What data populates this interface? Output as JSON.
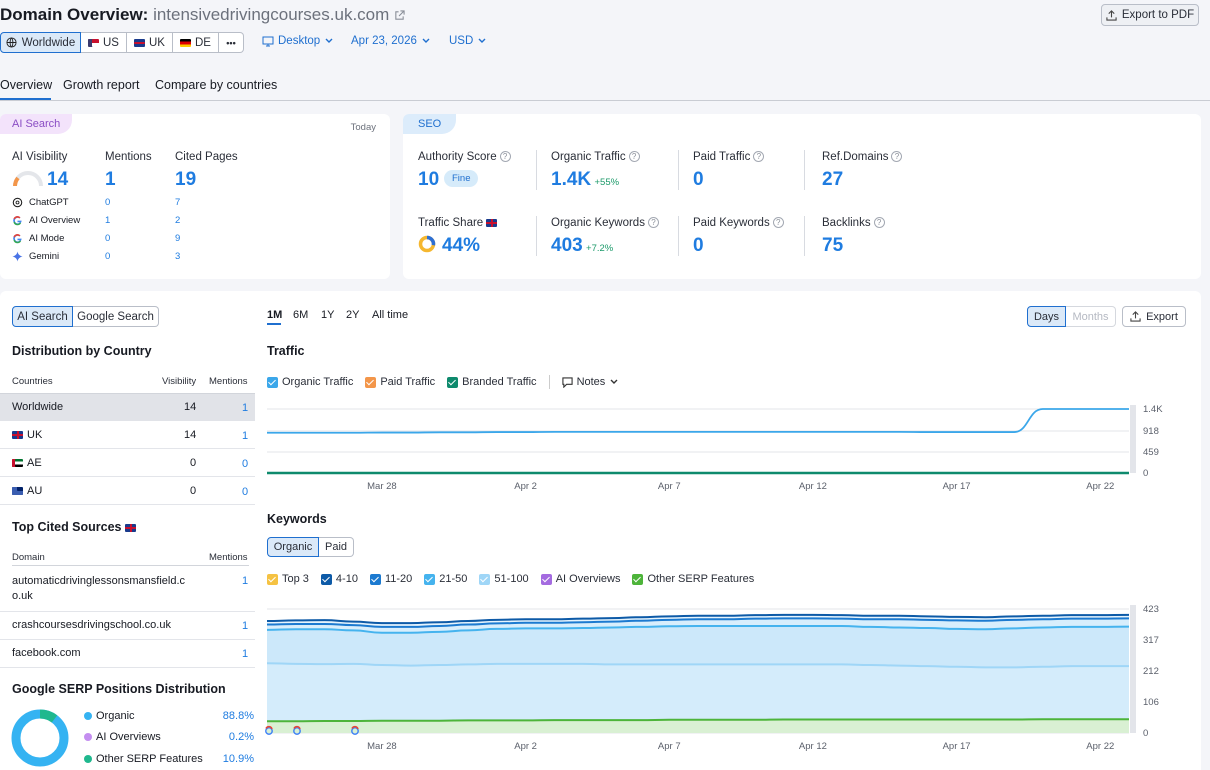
{
  "header": {
    "title_prefix": "Domain Overview:",
    "domain": "intensivedrivingcourses.uk.com",
    "export_pdf": "Export to PDF"
  },
  "regions": [
    {
      "label": "Worldwide",
      "active": true
    },
    {
      "label": "US"
    },
    {
      "label": "UK"
    },
    {
      "label": "DE"
    }
  ],
  "more_label": "•••",
  "filters": {
    "device": "Desktop",
    "date": "Apr 23, 2026",
    "currency": "USD"
  },
  "tabs": [
    "Overview",
    "Growth report",
    "Compare by countries"
  ],
  "ai_search": {
    "badge": "AI Search",
    "today": "Today",
    "headers": [
      "AI Visibility",
      "Mentions",
      "Cited Pages"
    ],
    "visibility": "14",
    "mentions": "1",
    "cited_pages": "19",
    "rows": [
      {
        "name": "ChatGPT",
        "mentions": "0",
        "cited": "7"
      },
      {
        "name": "AI Overview",
        "mentions": "1",
        "cited": "2"
      },
      {
        "name": "AI Mode",
        "mentions": "0",
        "cited": "9"
      },
      {
        "name": "Gemini",
        "mentions": "0",
        "cited": "3"
      }
    ]
  },
  "seo": {
    "badge": "SEO",
    "authority_label": "Authority Score",
    "authority_value": "10",
    "authority_tag": "Fine",
    "organic_traffic_label": "Organic Traffic",
    "organic_traffic_value": "1.4K",
    "organic_traffic_delta": "+55%",
    "paid_traffic_label": "Paid Traffic",
    "paid_traffic_value": "0",
    "ref_domains_label": "Ref.Domains",
    "ref_domains_value": "27",
    "traffic_share_label": "Traffic Share",
    "traffic_share_value": "44%",
    "organic_keywords_label": "Organic Keywords",
    "organic_keywords_value": "403",
    "organic_keywords_delta": "+7.2%",
    "paid_keywords_label": "Paid Keywords",
    "paid_keywords_value": "0",
    "backlinks_label": "Backlinks",
    "backlinks_value": "75"
  },
  "left_panel": {
    "toggle": [
      "AI Search",
      "Google Search"
    ],
    "dist_title": "Distribution by Country",
    "dist_headers": [
      "Countries",
      "Visibility",
      "Mentions"
    ],
    "dist_rows": [
      {
        "country": "Worldwide",
        "visibility": "14",
        "mentions": "1"
      },
      {
        "country": "UK",
        "visibility": "14",
        "mentions": "1"
      },
      {
        "country": "AE",
        "visibility": "0",
        "mentions": "0"
      },
      {
        "country": "AU",
        "visibility": "0",
        "mentions": "0"
      }
    ],
    "cited_title": "Top Cited Sources",
    "cited_headers": [
      "Domain",
      "Mentions"
    ],
    "cited_rows": [
      {
        "domain": "automaticdrivinglessonsmansfield.co.uk",
        "mentions": "1"
      },
      {
        "domain": "crashcoursesdrivingschool.co.uk",
        "mentions": "1"
      },
      {
        "domain": "facebook.com",
        "mentions": "1"
      }
    ],
    "serp_title": "Google SERP Positions Distribution",
    "serp_rows": [
      {
        "name": "Organic",
        "value": "88.8%",
        "color": "#35b3f2"
      },
      {
        "name": "AI Overviews",
        "value": "0.2%",
        "color": "#c48ef0"
      },
      {
        "name": "Other SERP Features",
        "value": "10.9%",
        "color": "#1fb88e"
      }
    ]
  },
  "chart_controls": {
    "ranges": [
      "1M",
      "6M",
      "1Y",
      "2Y",
      "All time"
    ],
    "days": "Days",
    "months": "Months",
    "export": "Export"
  },
  "traffic_chart": {
    "title": "Traffic",
    "legend": [
      {
        "name": "Organic Traffic",
        "color": "#3ba7ea"
      },
      {
        "name": "Paid Traffic",
        "color": "#f3964a"
      },
      {
        "name": "Branded Traffic",
        "color": "#0e8a6d"
      }
    ],
    "notes": "Notes"
  },
  "keywords_chart": {
    "title": "Keywords",
    "toggle": [
      "Organic",
      "Paid"
    ],
    "legend": [
      {
        "name": "Top 3",
        "color": "#f5c242"
      },
      {
        "name": "4-10",
        "color": "#0d5aa7"
      },
      {
        "name": "11-20",
        "color": "#1c7ad0"
      },
      {
        "name": "21-50",
        "color": "#45b3ee"
      },
      {
        "name": "51-100",
        "color": "#9fd6f7"
      },
      {
        "name": "AI Overviews",
        "color": "#a46be0"
      },
      {
        "name": "Other SERP Features",
        "color": "#4db43a"
      }
    ]
  },
  "chart_data": [
    {
      "type": "line",
      "x": [
        "Mar 24",
        "Mar 25",
        "Mar 26",
        "Mar 27",
        "Mar 28",
        "Mar 29",
        "Mar 30",
        "Mar 31",
        "Apr 1",
        "Apr 2",
        "Apr 3",
        "Apr 4",
        "Apr 5",
        "Apr 6",
        "Apr 7",
        "Apr 8",
        "Apr 9",
        "Apr 10",
        "Apr 11",
        "Apr 12",
        "Apr 13",
        "Apr 14",
        "Apr 15",
        "Apr 16",
        "Apr 17",
        "Apr 18",
        "Apr 19",
        "Apr 20",
        "Apr 21",
        "Apr 22",
        "Apr 23"
      ],
      "x_ticks": [
        "Mar 28",
        "Apr 2",
        "Apr 7",
        "Apr 12",
        "Apr 17",
        "Apr 22"
      ],
      "y_ticks": [
        "0",
        "459",
        "918",
        "1.4K"
      ],
      "ylim": [
        0,
        1400
      ],
      "series": [
        {
          "name": "Organic Traffic",
          "values": [
            880,
            880,
            880,
            880,
            885,
            885,
            890,
            890,
            895,
            895,
            900,
            900,
            900,
            900,
            900,
            900,
            900,
            900,
            900,
            900,
            900,
            900,
            900,
            895,
            895,
            895,
            895,
            1400,
            1400,
            1400,
            1400
          ]
        },
        {
          "name": "Branded Traffic",
          "values": [
            0,
            0,
            0,
            0,
            0,
            0,
            0,
            0,
            0,
            0,
            0,
            0,
            0,
            0,
            0,
            0,
            0,
            0,
            0,
            0,
            0,
            0,
            0,
            0,
            0,
            0,
            0,
            0,
            0,
            0,
            0
          ]
        }
      ]
    },
    {
      "type": "area",
      "x": [
        "Mar 24",
        "Mar 25",
        "Mar 26",
        "Mar 27",
        "Mar 28",
        "Mar 29",
        "Mar 30",
        "Mar 31",
        "Apr 1",
        "Apr 2",
        "Apr 3",
        "Apr 4",
        "Apr 5",
        "Apr 6",
        "Apr 7",
        "Apr 8",
        "Apr 9",
        "Apr 10",
        "Apr 11",
        "Apr 12",
        "Apr 13",
        "Apr 14",
        "Apr 15",
        "Apr 16",
        "Apr 17",
        "Apr 18",
        "Apr 19",
        "Apr 20",
        "Apr 21",
        "Apr 22",
        "Apr 23"
      ],
      "x_ticks": [
        "Mar 28",
        "Apr 2",
        "Apr 7",
        "Apr 12",
        "Apr 17",
        "Apr 22"
      ],
      "y_ticks": [
        "0",
        "106",
        "212",
        "317",
        "423"
      ],
      "ylim": [
        0,
        423
      ],
      "series": [
        {
          "name": "4-10",
          "values": [
            382,
            384,
            385,
            380,
            375,
            375,
            378,
            382,
            386,
            388,
            388,
            390,
            392,
            395,
            398,
            400,
            400,
            402,
            403,
            403,
            402,
            400,
            400,
            398,
            396,
            395,
            398,
            400,
            402,
            402,
            403
          ]
        },
        {
          "name": "11-20",
          "values": [
            370,
            372,
            372,
            368,
            362,
            362,
            365,
            370,
            374,
            376,
            376,
            378,
            380,
            383,
            386,
            388,
            388,
            390,
            391,
            391,
            390,
            388,
            388,
            386,
            384,
            383,
            386,
            388,
            390,
            390,
            391
          ]
        },
        {
          "name": "21-50",
          "values": [
            352,
            354,
            354,
            350,
            342,
            342,
            345,
            350,
            355,
            357,
            357,
            358,
            360,
            362,
            364,
            365,
            365,
            365,
            365,
            365,
            365,
            362,
            360,
            358,
            355,
            354,
            357,
            360,
            362,
            362,
            363
          ]
        },
        {
          "name": "51-100",
          "values": [
            238,
            236,
            235,
            236,
            232,
            230,
            232,
            234,
            236,
            236,
            236,
            236,
            234,
            234,
            234,
            234,
            234,
            234,
            234,
            234,
            234,
            232,
            230,
            228,
            226,
            224,
            224,
            226,
            228,
            228,
            228
          ]
        },
        {
          "name": "Other SERP Features",
          "values": [
            40,
            40,
            41,
            41,
            42,
            42,
            42,
            43,
            43,
            43,
            44,
            44,
            44,
            44,
            45,
            45,
            45,
            45,
            46,
            46,
            46,
            46,
            46,
            46,
            46,
            46,
            46,
            47,
            47,
            47,
            47
          ]
        }
      ]
    }
  ]
}
